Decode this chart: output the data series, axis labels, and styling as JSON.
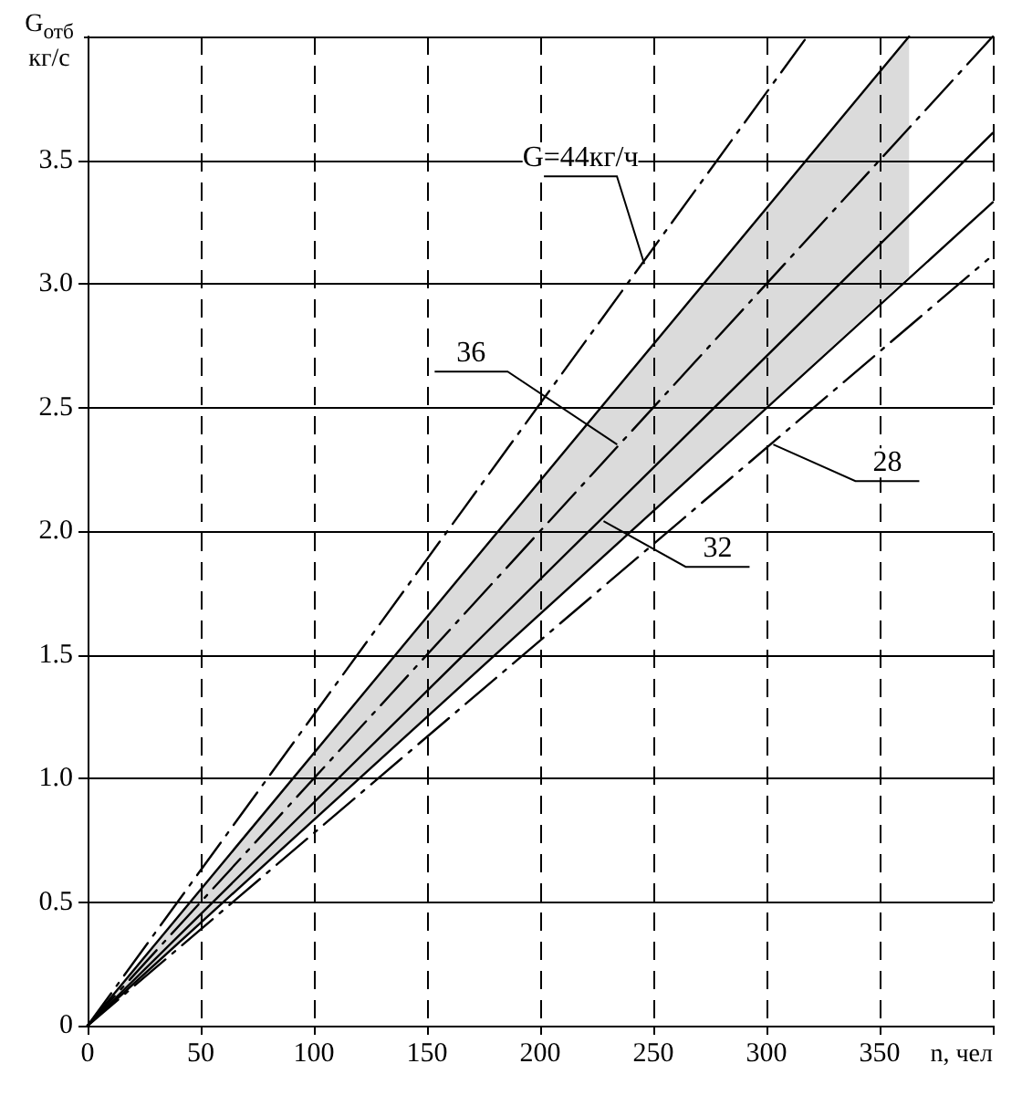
{
  "chart_data": {
    "type": "line",
    "xlabel": "n, чел",
    "ylabel": "G$_{отб}$ кг/с",
    "xlim": [
      0,
      400
    ],
    "ylim": [
      0,
      4
    ],
    "xticks": [
      0,
      50,
      100,
      150,
      200,
      250,
      300,
      350,
      {
        "value": 400,
        "label": null
      }
    ],
    "yticks": [
      0,
      {
        "value": 0.5,
        "label": "0.5"
      },
      {
        "value": 1,
        "label": "1.0"
      },
      {
        "value": 1.5,
        "label": "1.5"
      },
      {
        "value": 2,
        "label": "2.0"
      },
      {
        "value": 2.5,
        "label": "2.5"
      },
      {
        "value": 3,
        "label": "3.0"
      },
      {
        "value": 3.5,
        "label": "3.5"
      },
      {
        "value": 4,
        "label": null
      }
    ],
    "grid": true,
    "marker": "none",
    "series": [
      {
        "color": "#000000",
        "line_style": "dashed",
        "x": [
          0,
          318
        ],
        "values": [
          0,
          4.0
        ]
      },
      {
        "color": "#000000",
        "line_style": "solid",
        "x": [
          0,
          363
        ],
        "values": [
          0,
          4.0
        ]
      },
      {
        "color": "#000000",
        "line_style": "dashed",
        "x": [
          0,
          363,
          400
        ],
        "values": [
          0,
          3.63,
          4.0
        ],
        "lower": [
          0,
          3.03,
          null
        ],
        "upper": [
          0,
          4.0,
          null
        ]
      },
      {
        "color": "#000000",
        "line_style": "solid",
        "x": [
          0,
          400
        ],
        "values": [
          0,
          3.61
        ]
      },
      {
        "color": "#000000",
        "line_style": "solid",
        "x": [
          0,
          400
        ],
        "values": [
          0,
          3.33
        ]
      },
      {
        "color": "#000000",
        "line_style": "dashed",
        "x": [
          0,
          398
        ],
        "values": [
          0,
          3.1
        ]
      }
    ],
    "annotations": [
      {
        "text": "G=44кг/ч",
        "x": 246,
        "y": 3.08
      },
      {
        "text": "36",
        "x": 234,
        "y": 2.35
      },
      {
        "text": "32",
        "x": 228,
        "y": 2.04
      },
      {
        "text": "28",
        "x": 303,
        "y": 2.35
      }
    ]
  }
}
